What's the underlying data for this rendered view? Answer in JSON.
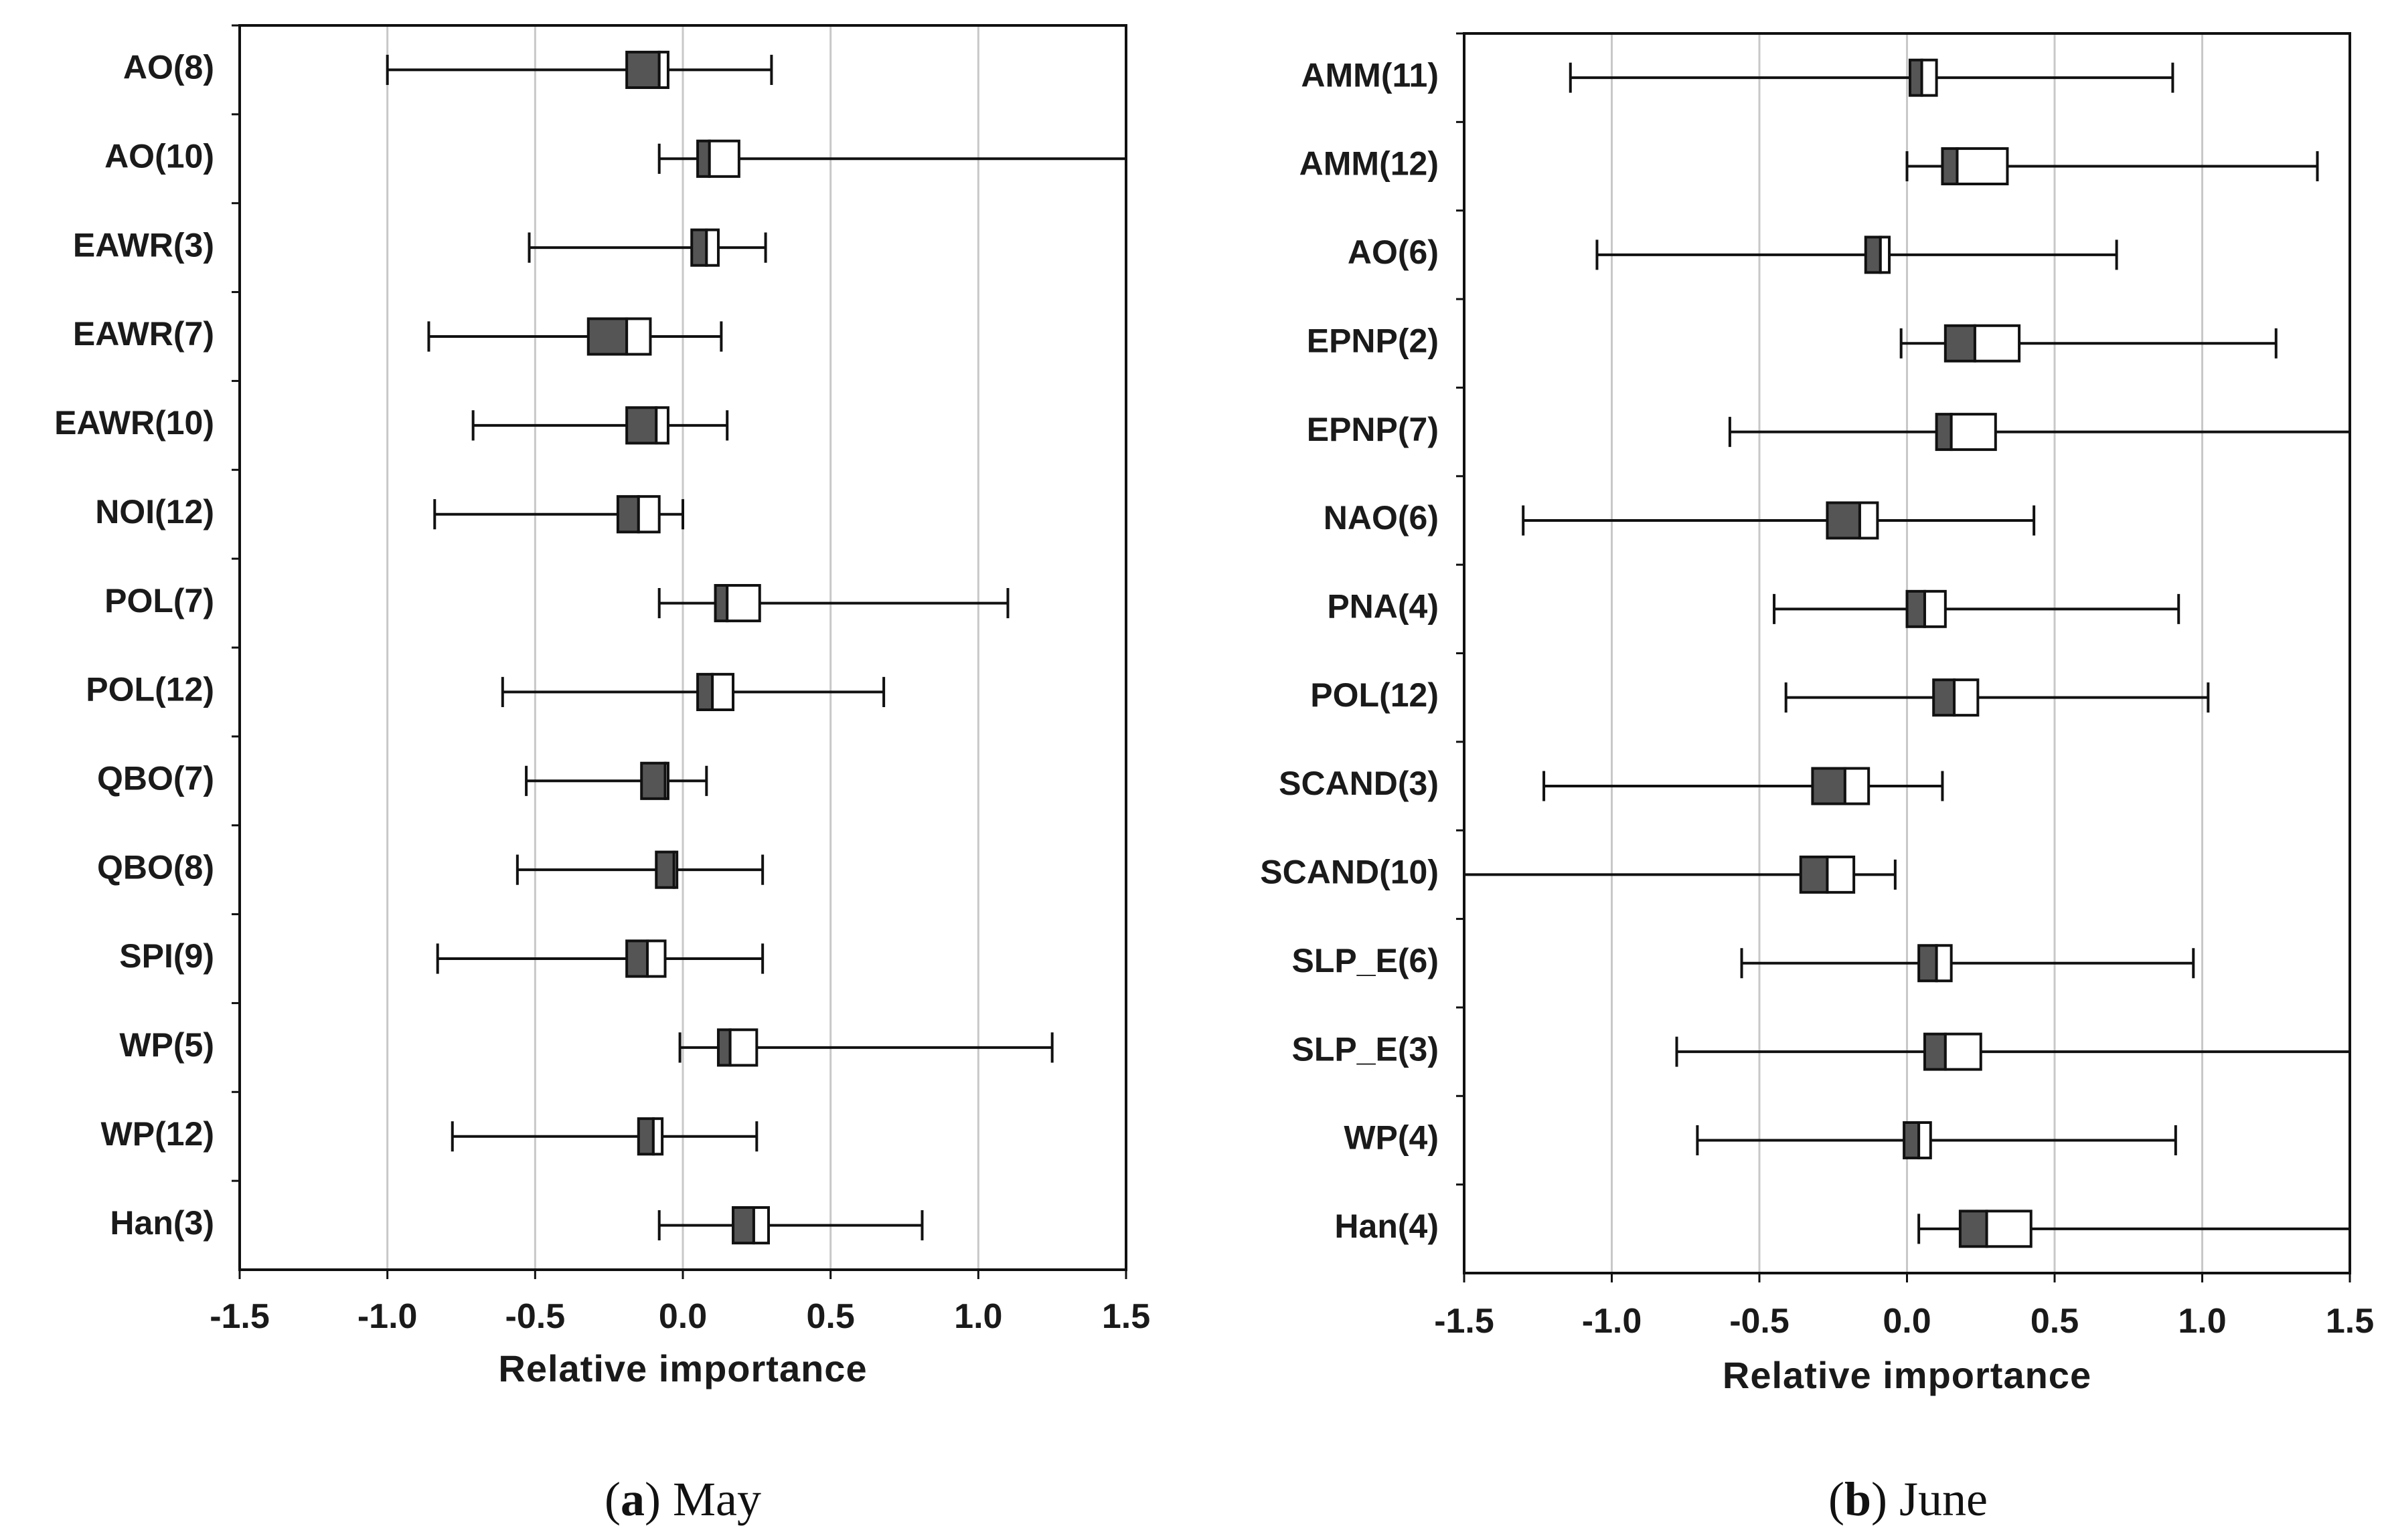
{
  "colors": {
    "q_lower": "#555555",
    "q_upper": "#ffffff",
    "line": "#111111",
    "grid": "#c8c8c8"
  },
  "chart_data": [
    {
      "type": "boxplot",
      "caption_label": "a",
      "caption_rest": ") May",
      "caption_open": "(",
      "xlabel": "Relative importance",
      "xlim": [
        -1.5,
        1.5
      ],
      "xticks": [
        -1.5,
        -1.0,
        -0.5,
        0.0,
        0.5,
        1.0,
        1.5
      ],
      "xtick_labels": [
        "-1.5",
        "-1.0",
        "-0.5",
        "0.0",
        "0.5",
        "1.0",
        "1.5"
      ],
      "grid": "vertical",
      "categories": [
        "AO(8)",
        "AO(10)",
        "EAWR(3)",
        "EAWR(7)",
        "EAWR(10)",
        "NOI(12)",
        "POL(7)",
        "POL(12)",
        "QBO(7)",
        "QBO(8)",
        "SPI(9)",
        "WP(5)",
        "WP(12)",
        "Han(3)"
      ],
      "series": [
        {
          "name": "AO(8)",
          "min": -1.0,
          "q1": -0.19,
          "median": -0.08,
          "q3": -0.05,
          "max": 0.3
        },
        {
          "name": "AO(10)",
          "min": -0.08,
          "q1": 0.05,
          "median": 0.09,
          "q3": 0.19,
          "max": 1.5
        },
        {
          "name": "EAWR(3)",
          "min": -0.52,
          "q1": 0.03,
          "median": 0.08,
          "q3": 0.12,
          "max": 0.28
        },
        {
          "name": "EAWR(7)",
          "min": -0.86,
          "q1": -0.32,
          "median": -0.19,
          "q3": -0.11,
          "max": 0.13
        },
        {
          "name": "EAWR(10)",
          "min": -0.71,
          "q1": -0.19,
          "median": -0.09,
          "q3": -0.05,
          "max": 0.15
        },
        {
          "name": "NOI(12)",
          "min": -0.84,
          "q1": -0.22,
          "median": -0.15,
          "q3": -0.08,
          "max": 0.0
        },
        {
          "name": "POL(7)",
          "min": -0.08,
          "q1": 0.11,
          "median": 0.15,
          "q3": 0.26,
          "max": 1.1
        },
        {
          "name": "POL(12)",
          "min": -0.61,
          "q1": 0.05,
          "median": 0.1,
          "q3": 0.17,
          "max": 0.68
        },
        {
          "name": "QBO(7)",
          "min": -0.53,
          "q1": -0.14,
          "median": -0.06,
          "q3": -0.05,
          "max": 0.08
        },
        {
          "name": "QBO(8)",
          "min": -0.56,
          "q1": -0.09,
          "median": -0.03,
          "q3": -0.02,
          "max": 0.27
        },
        {
          "name": "SPI(9)",
          "min": -0.83,
          "q1": -0.19,
          "median": -0.12,
          "q3": -0.06,
          "max": 0.27
        },
        {
          "name": "WP(5)",
          "min": -0.01,
          "q1": 0.12,
          "median": 0.16,
          "q3": 0.25,
          "max": 1.25
        },
        {
          "name": "WP(12)",
          "min": -0.78,
          "q1": -0.15,
          "median": -0.1,
          "q3": -0.07,
          "max": 0.25
        },
        {
          "name": "Han(3)",
          "min": -0.08,
          "q1": 0.17,
          "median": 0.24,
          "q3": 0.29,
          "max": 0.81
        }
      ]
    },
    {
      "type": "boxplot",
      "caption_label": "b",
      "caption_rest": ") June",
      "caption_open": "(",
      "xlabel": "Relative importance",
      "xlim": [
        -1.5,
        1.5
      ],
      "xticks": [
        -1.5,
        -1.0,
        -0.5,
        0.0,
        0.5,
        1.0,
        1.5
      ],
      "xtick_labels": [
        "-1.5",
        "-1.0",
        "-0.5",
        "0.0",
        "0.5",
        "1.0",
        "1.5"
      ],
      "grid": "vertical",
      "categories": [
        "AMM(11)",
        "AMM(12)",
        "AO(6)",
        "EPNP(2)",
        "EPNP(7)",
        "NAO(6)",
        "PNA(4)",
        "POL(12)",
        "SCAND(3)",
        "SCAND(10)",
        "SLP_E(6)",
        "SLP_E(3)",
        "WP(4)",
        "Han(4)"
      ],
      "series": [
        {
          "name": "AMM(11)",
          "min": -1.14,
          "q1": 0.01,
          "median": 0.05,
          "q3": 0.1,
          "max": 0.9
        },
        {
          "name": "AMM(12)",
          "min": 0.0,
          "q1": 0.12,
          "median": 0.17,
          "q3": 0.34,
          "max": 1.39
        },
        {
          "name": "AO(6)",
          "min": -1.05,
          "q1": -0.14,
          "median": -0.09,
          "q3": -0.06,
          "max": 0.71
        },
        {
          "name": "EPNP(2)",
          "min": -0.02,
          "q1": 0.13,
          "median": 0.23,
          "q3": 0.38,
          "max": 1.25
        },
        {
          "name": "EPNP(7)",
          "min": -0.6,
          "q1": 0.1,
          "median": 0.15,
          "q3": 0.3,
          "max": 1.5
        },
        {
          "name": "NAO(6)",
          "min": -1.3,
          "q1": -0.27,
          "median": -0.16,
          "q3": -0.1,
          "max": 0.43
        },
        {
          "name": "PNA(4)",
          "min": -0.45,
          "q1": 0.0,
          "median": 0.06,
          "q3": 0.13,
          "max": 0.92
        },
        {
          "name": "POL(12)",
          "min": -0.41,
          "q1": 0.09,
          "median": 0.16,
          "q3": 0.24,
          "max": 1.02
        },
        {
          "name": "SCAND(3)",
          "min": -1.23,
          "q1": -0.32,
          "median": -0.21,
          "q3": -0.13,
          "max": 0.12
        },
        {
          "name": "SCAND(10)",
          "min": -1.5,
          "q1": -0.36,
          "median": -0.27,
          "q3": -0.18,
          "max": -0.04
        },
        {
          "name": "SLP_E(6)",
          "min": -0.56,
          "q1": 0.04,
          "median": 0.1,
          "q3": 0.15,
          "max": 0.97
        },
        {
          "name": "SLP_E(3)",
          "min": -0.78,
          "q1": 0.06,
          "median": 0.13,
          "q3": 0.25,
          "max": 1.5
        },
        {
          "name": "WP(4)",
          "min": -0.71,
          "q1": -0.01,
          "median": 0.04,
          "q3": 0.08,
          "max": 0.91
        },
        {
          "name": "Han(4)",
          "min": 0.04,
          "q1": 0.18,
          "median": 0.27,
          "q3": 0.42,
          "max": 1.5
        }
      ]
    }
  ]
}
